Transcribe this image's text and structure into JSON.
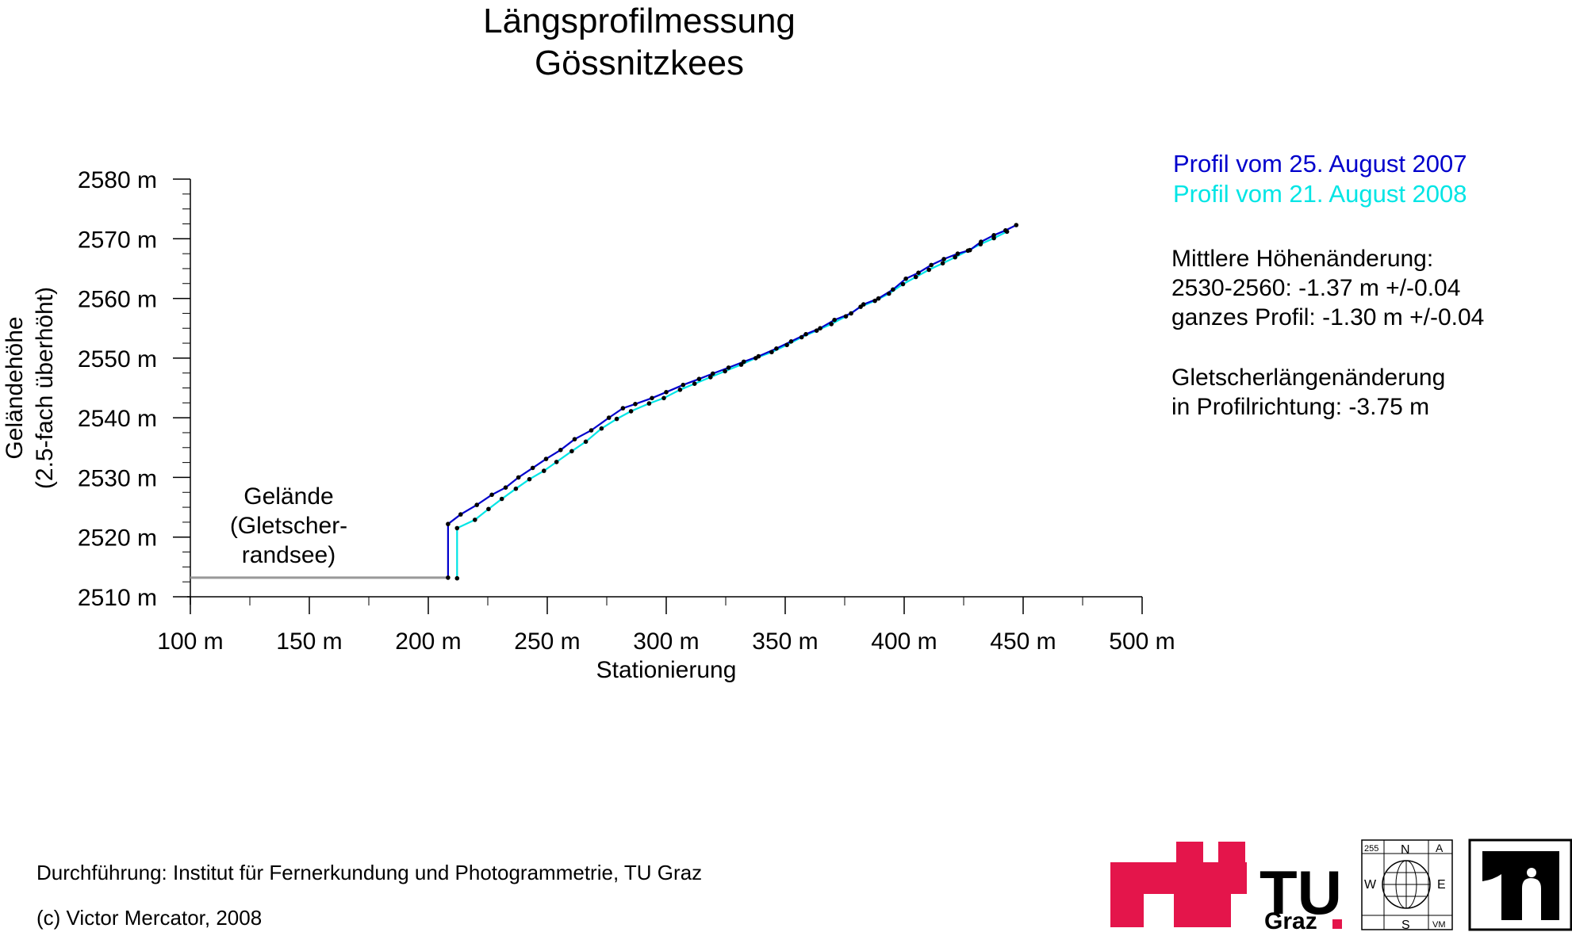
{
  "chart_data": {
    "type": "line",
    "title": "Längsprofilmessung",
    "subtitle": "Gössnitzkees",
    "xlabel": "Stationierung",
    "ylabel": "Geländehöhe",
    "ylabel2": "(2.5-fach überhöht)",
    "xlim": [
      100,
      500
    ],
    "ylim": [
      2510,
      2580
    ],
    "x_ticks": [
      100,
      150,
      200,
      250,
      300,
      350,
      400,
      450,
      500
    ],
    "x_tick_labels": [
      "100 m",
      "150 m",
      "200 m",
      "250 m",
      "300 m",
      "350 m",
      "400 m",
      "450 m",
      "500 m"
    ],
    "y_ticks": [
      2510,
      2520,
      2530,
      2540,
      2550,
      2560,
      2570,
      2580
    ],
    "y_tick_labels": [
      "2510 m",
      "2520 m",
      "2530 m",
      "2540 m",
      "2550 m",
      "2560 m",
      "2570 m",
      "2580 m"
    ],
    "series": [
      {
        "name": "Profil vom 25. August 2007",
        "color": "#0000cc",
        "x": [
          208.3,
          208.3,
          213.6,
          220.4,
          226.7,
          232.5,
          237.9,
          243.9,
          249.5,
          255.6,
          261.5,
          268.5,
          275.9,
          281.8,
          287.0,
          294.0,
          300.0,
          307.1,
          313.8,
          319.6,
          326.2,
          332.6,
          338.8,
          346.3,
          352.5,
          358.7,
          364.7,
          370.7,
          377.7,
          382.9,
          389.2,
          395.3,
          400.7,
          406.0,
          411.4,
          416.7,
          422.5,
          427.6,
          432.3,
          437.7,
          442.6,
          447.1
        ],
        "y": [
          2513.2,
          2522.2,
          2523.8,
          2525.4,
          2527.1,
          2528.3,
          2530.0,
          2531.6,
          2533.1,
          2534.6,
          2536.4,
          2537.9,
          2540.0,
          2541.6,
          2542.3,
          2543.3,
          2544.3,
          2545.5,
          2546.5,
          2547.4,
          2548.4,
          2549.4,
          2550.3,
          2551.6,
          2552.8,
          2554.0,
          2555.0,
          2556.4,
          2557.5,
          2559.0,
          2560.0,
          2561.5,
          2563.3,
          2564.3,
          2565.6,
          2566.6,
          2567.5,
          2568.1,
          2569.5,
          2570.6,
          2571.4,
          2572.3
        ]
      },
      {
        "name": "Profil vom 21. August 2008",
        "color": "#00e5e5",
        "x": [
          212.1,
          212.1,
          219.6,
          225.3,
          230.9,
          236.8,
          242.5,
          248.6,
          253.9,
          260.3,
          266.2,
          272.8,
          279.2,
          285.2,
          292.8,
          299.0,
          305.8,
          311.9,
          318.6,
          324.7,
          331.5,
          337.6,
          344.3,
          350.7,
          356.9,
          363.2,
          369.4,
          375.5,
          381.7,
          387.7,
          393.6,
          399.5,
          404.9,
          410.4,
          416.2,
          421.4,
          426.8,
          432.1,
          437.7,
          443.2
        ],
        "y": [
          2513.1,
          2521.5,
          2522.9,
          2524.7,
          2526.4,
          2528.1,
          2529.7,
          2531.1,
          2532.6,
          2534.4,
          2536.0,
          2538.2,
          2539.8,
          2541.1,
          2542.4,
          2543.3,
          2544.7,
          2545.7,
          2546.8,
          2547.8,
          2548.9,
          2550.0,
          2551.0,
          2552.2,
          2553.5,
          2554.6,
          2555.7,
          2557.0,
          2558.6,
          2559.6,
          2560.8,
          2562.4,
          2563.6,
          2564.8,
          2565.9,
          2566.9,
          2568.0,
          2569.1,
          2570.1,
          2571.2
        ]
      },
      {
        "name": "",
        "color": "#999999",
        "x": [
          100,
          208.3
        ],
        "y": [
          2513.2,
          2513.2
        ]
      }
    ],
    "annotations": {
      "gelaende": [
        "Gelände",
        "(Gletscher-",
        "randsee)"
      ]
    },
    "grid": false,
    "legend_position": "top-right"
  },
  "legend": {
    "item_2007": "Profil vom 25. August 2007",
    "item_2008": "Profil vom 21. August 2008",
    "color_2007": "#0000cc",
    "color_2008": "#00e5e5"
  },
  "info": {
    "hoehen_heading": "Mittlere Höhenänderung:",
    "hoehen_range": "2530-2560: -1.37 m  +/-0.04",
    "hoehen_total": "ganzes Profil: -1.30 m  +/-0.04",
    "laengen_heading": "Gletscherlängenänderung",
    "laengen_value": "in Profilrichtung: -3.75 m"
  },
  "footer": {
    "credit": "Durchführung: Institut für Fernerkundung und Photogrammetrie, TU Graz",
    "copyright": "(c) Victor Mercator, 2008"
  },
  "logos": {
    "tu_text": "TU",
    "tu_sub": "Graz",
    "tu_color": "#e4154b",
    "compass_n": "N",
    "compass_w": "W",
    "compass_e": "E",
    "compass_s": "S",
    "compass_num": "255",
    "compass_tri": "A",
    "compass_vm": "VM"
  }
}
